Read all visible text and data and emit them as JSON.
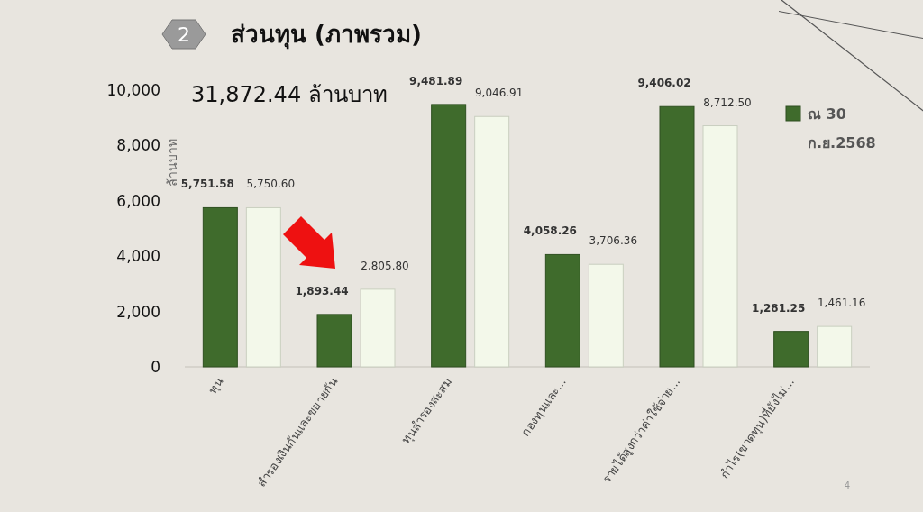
{
  "chart_data": {
    "type": "bar",
    "title": "ส่วนทุน (ภาพรวม)",
    "ylabel": "ล้านบาท",
    "annotations": [
      "2",
      "31,872.44 ล้านบาท",
      "4"
    ],
    "categories": [
      "ทุน",
      "สำรองเงินกันและขยายกัน",
      "ทุนสำรองสะสม",
      "กองทุนและ...",
      "รายได้สูงกว่าค่าใช้จ่าย...",
      "กำไร(ขาดทุน)ที่ยังไม่..."
    ],
    "series": [
      {
        "name": "ณ 30 ก.ย.2568",
        "color": "#3f6b2c",
        "values": [
          5751.58,
          1893.44,
          9481.89,
          4058.26,
          9406.02,
          1281.25
        ],
        "value_labels": [
          "5,751.58",
          "1,893.44",
          "9,481.89",
          "4,058.26",
          "9,406.02",
          "1,281.25"
        ]
      },
      {
        "color": "#f3f8ea",
        "values": [
          5750.6,
          2805.8,
          9046.91,
          3706.36,
          8712.5,
          1461.16
        ],
        "value_labels": [
          "5,750.60",
          "2,805.80",
          "9,046.91",
          "3,706.36",
          "8,712.50",
          "1,461.16"
        ]
      }
    ],
    "ylim": [
      0,
      10000
    ],
    "yticks": [
      {
        "value": 0,
        "label": "0"
      },
      {
        "value": 2000,
        "label": "2,000"
      },
      {
        "value": 4000,
        "label": "4,000"
      },
      {
        "value": 6000,
        "label": "6,000"
      },
      {
        "value": 8000,
        "label": "8,000"
      },
      {
        "value": 10000,
        "label": "10,000"
      }
    ],
    "grid": false,
    "legend": "right"
  }
}
